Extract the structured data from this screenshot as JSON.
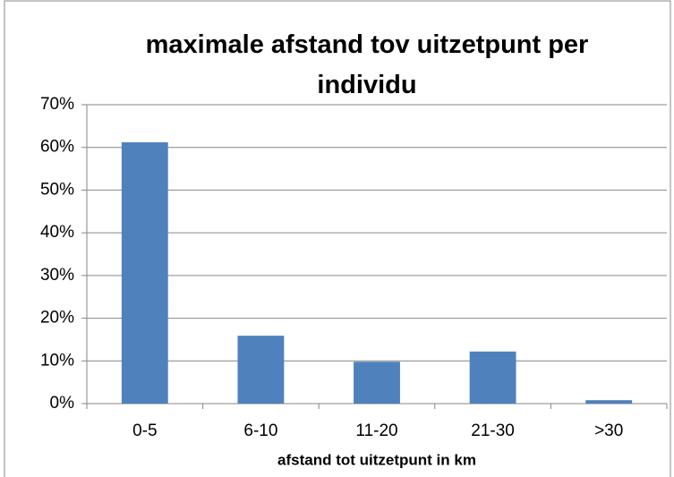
{
  "chart_data": {
    "type": "bar",
    "title": "maximale afstand tov uitzetpunt per individu",
    "x_label": "afstand tot uitzetpunt in km",
    "categories": [
      "0-5",
      "6-10",
      "11-20",
      "21-30",
      ">30"
    ],
    "values": [
      61.2,
      15.9,
      9.8,
      12.2,
      0.8
    ],
    "color": "#4f81bd",
    "ylim": [
      0,
      70
    ],
    "yticks": [
      {
        "value": 0,
        "label": "0%"
      },
      {
        "value": 10,
        "label": "10%"
      },
      {
        "value": 20,
        "label": "20%"
      },
      {
        "value": 30,
        "label": "30%"
      },
      {
        "value": 40,
        "label": "40%"
      },
      {
        "value": 50,
        "label": "50%"
      },
      {
        "value": 60,
        "label": "60%"
      },
      {
        "value": 70,
        "label": "70%"
      }
    ],
    "grid": true
  }
}
